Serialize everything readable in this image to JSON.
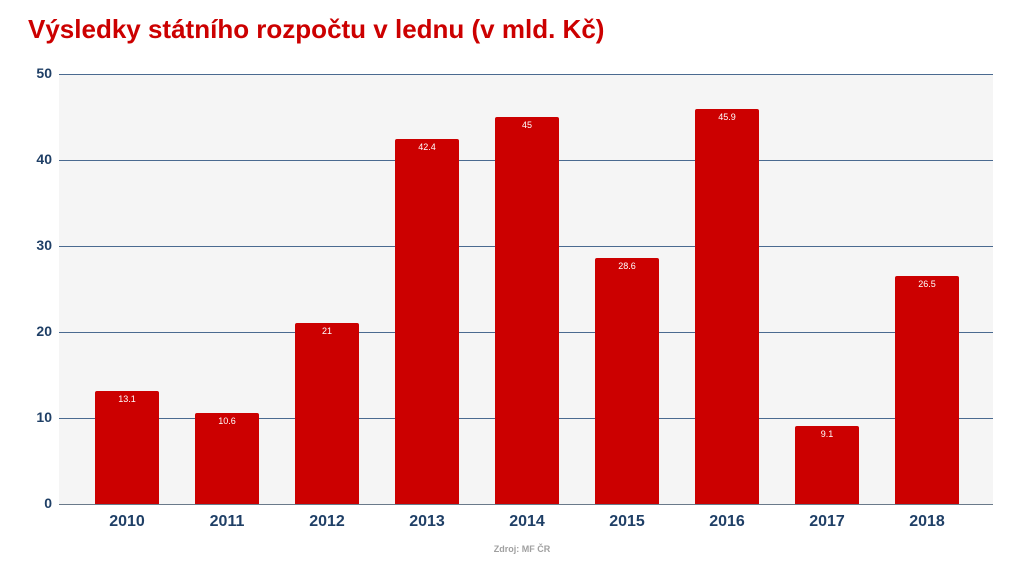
{
  "title": "Výsledky státního rozpočtu v lednu (v mld. Kč)",
  "source": "Zdroj: MF ČR",
  "colors": {
    "bar": "#cc0000",
    "title": "#cc0000",
    "axis_text": "#1f3f66",
    "gridline": "#4a6a90",
    "plot_bg": "#f5f5f5"
  },
  "y_ticks": [
    "0",
    "10",
    "20",
    "30",
    "40",
    "50"
  ],
  "chart_data": {
    "type": "bar",
    "title": "Výsledky státního rozpočtu v lednu (v mld. Kč)",
    "xlabel": "",
    "ylabel": "",
    "categories": [
      "2010",
      "2011",
      "2012",
      "2013",
      "2014",
      "2015",
      "2016",
      "2017",
      "2018"
    ],
    "values": [
      13.1,
      10.6,
      21,
      42.4,
      45,
      28.6,
      45.9,
      9.1,
      26.5
    ],
    "value_labels": [
      "13.1",
      "10.6",
      "21",
      "42.4",
      "45",
      "28.6",
      "45.9",
      "9.1",
      "26.5"
    ],
    "ylim": [
      0,
      50
    ],
    "y_ticks": [
      0,
      10,
      20,
      30,
      40,
      50
    ],
    "grid": true,
    "legend": "none",
    "annotation": "Zdroj: MF ČR"
  }
}
